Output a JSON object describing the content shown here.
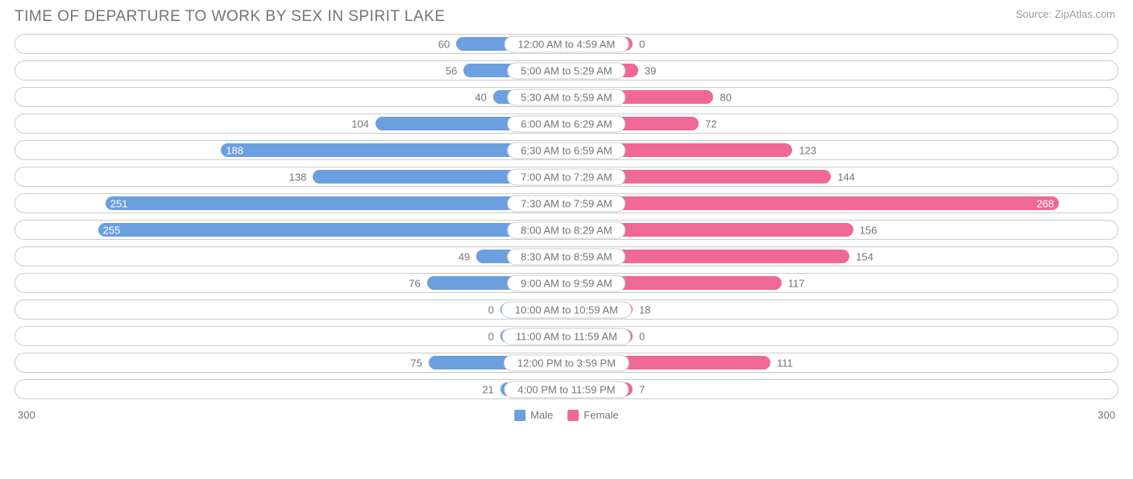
{
  "title": "TIME OF DEPARTURE TO WORK BY SEX IN SPIRIT LAKE",
  "source": "Source: ZipAtlas.com",
  "chart": {
    "type": "diverging-bar",
    "max_value": 300,
    "min_bar_percent": 12,
    "background_color": "#ffffff",
    "track_border_color": "#cccccc",
    "label_border_color": "#cccccc",
    "text_color": "#74737a",
    "value_fontsize": 13,
    "label_fontsize": 13,
    "title_fontsize": 19,
    "series": [
      {
        "key": "male",
        "label": "Male",
        "color": "#6c9fe0",
        "side": "left"
      },
      {
        "key": "female",
        "label": "Female",
        "color": "#f06897",
        "side": "right"
      }
    ],
    "rows": [
      {
        "label": "12:00 AM to 4:59 AM",
        "male": 60,
        "female": 0
      },
      {
        "label": "5:00 AM to 5:29 AM",
        "male": 56,
        "female": 39
      },
      {
        "label": "5:30 AM to 5:59 AM",
        "male": 40,
        "female": 80
      },
      {
        "label": "6:00 AM to 6:29 AM",
        "male": 104,
        "female": 72
      },
      {
        "label": "6:30 AM to 6:59 AM",
        "male": 188,
        "female": 123
      },
      {
        "label": "7:00 AM to 7:29 AM",
        "male": 138,
        "female": 144
      },
      {
        "label": "7:30 AM to 7:59 AM",
        "male": 251,
        "female": 268
      },
      {
        "label": "8:00 AM to 8:29 AM",
        "male": 255,
        "female": 156
      },
      {
        "label": "8:30 AM to 8:59 AM",
        "male": 49,
        "female": 154
      },
      {
        "label": "9:00 AM to 9:59 AM",
        "male": 76,
        "female": 117
      },
      {
        "label": "10:00 AM to 10:59 AM",
        "male": 0,
        "female": 18
      },
      {
        "label": "11:00 AM to 11:59 AM",
        "male": 0,
        "female": 0
      },
      {
        "label": "12:00 PM to 3:59 PM",
        "male": 75,
        "female": 111
      },
      {
        "label": "4:00 PM to 11:59 PM",
        "male": 21,
        "female": 7
      }
    ],
    "axis_left_label": "300",
    "axis_right_label": "300"
  }
}
